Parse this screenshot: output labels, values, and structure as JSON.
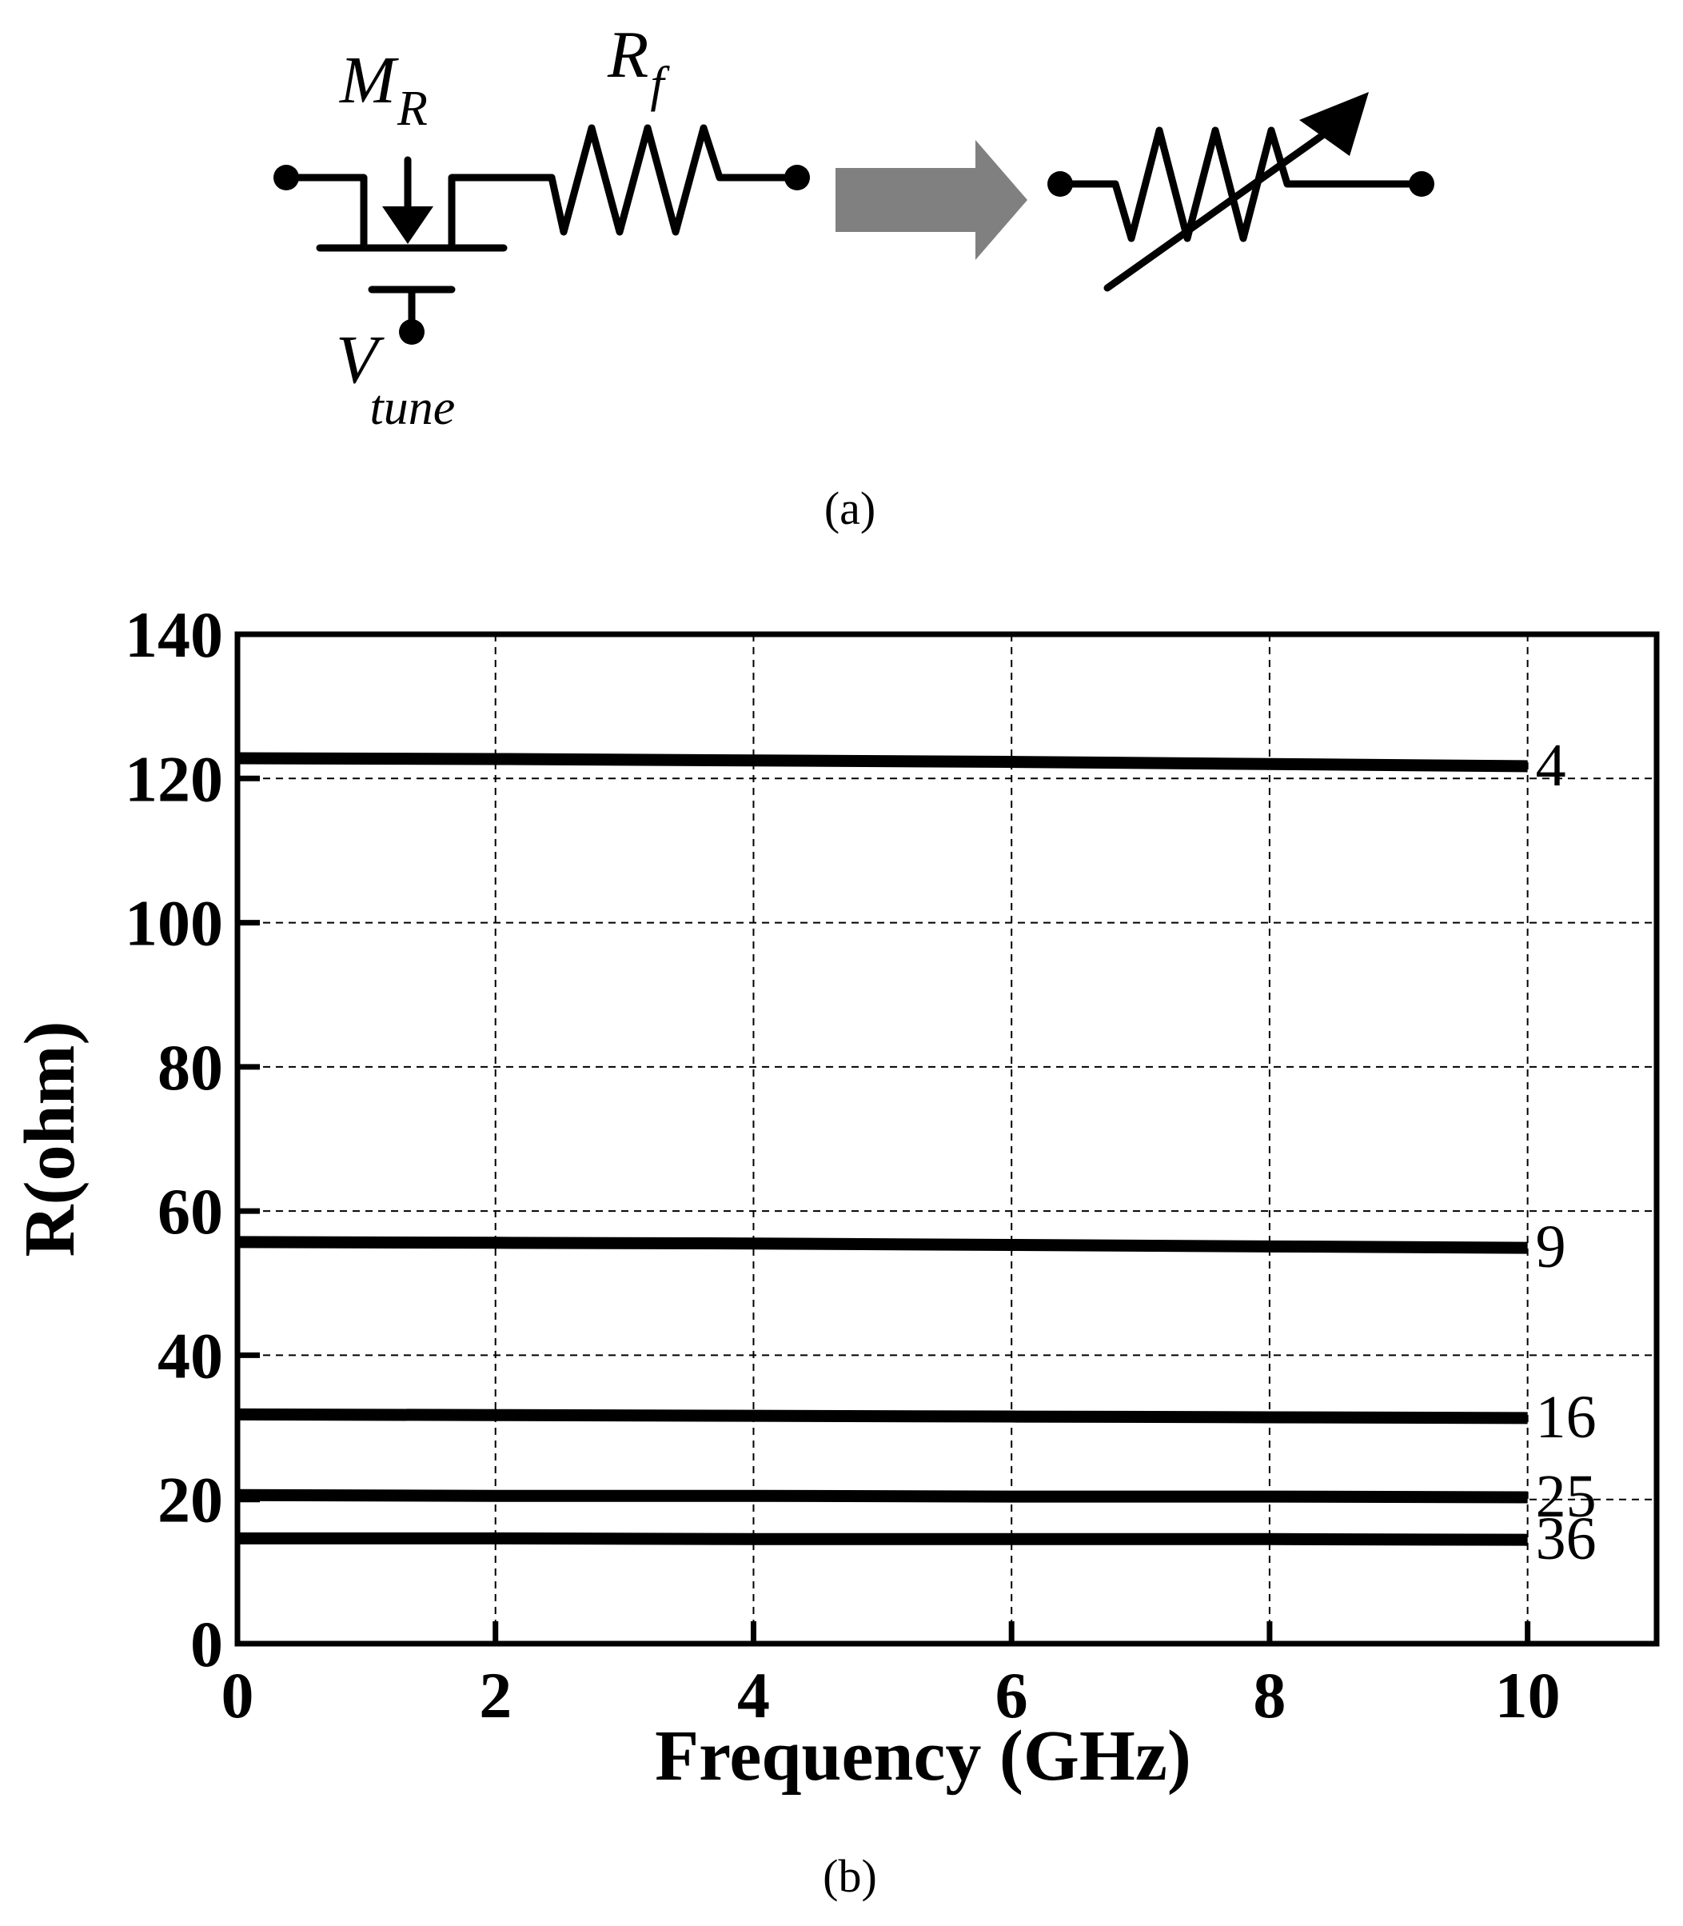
{
  "schematic": {
    "transistor_label": "M",
    "transistor_sub": "R",
    "resistor_label": "R",
    "resistor_sub": "f",
    "tune_label": "V",
    "tune_sub": "tune",
    "caption": "(a)"
  },
  "colors": {
    "ink": "#000000",
    "arrow": "#808080",
    "grid": "#000000"
  },
  "chart_caption": "(b)",
  "chart_data": {
    "type": "line",
    "title": "",
    "xlabel": "Frequency (GHz)",
    "ylabel": "R(ohm)",
    "xlim": [
      0,
      11
    ],
    "ylim": [
      0,
      140
    ],
    "xticks": [
      0,
      2,
      4,
      6,
      8,
      10
    ],
    "yticks": [
      0,
      20,
      40,
      60,
      80,
      100,
      120,
      140
    ],
    "grid": true,
    "x": [
      0,
      2,
      4,
      6,
      8,
      10
    ],
    "series": [
      {
        "name": "4",
        "values": [
          122.8,
          122.7,
          122.5,
          122.3,
          122.0,
          121.7
        ]
      },
      {
        "name": "9",
        "values": [
          55.7,
          55.6,
          55.5,
          55.3,
          55.1,
          54.9
        ]
      },
      {
        "name": "16",
        "values": [
          31.8,
          31.7,
          31.6,
          31.5,
          31.4,
          31.3
        ]
      },
      {
        "name": "25",
        "values": [
          20.6,
          20.5,
          20.5,
          20.4,
          20.4,
          20.3
        ]
      },
      {
        "name": "36",
        "values": [
          14.6,
          14.6,
          14.5,
          14.5,
          14.5,
          14.4
        ]
      }
    ]
  }
}
